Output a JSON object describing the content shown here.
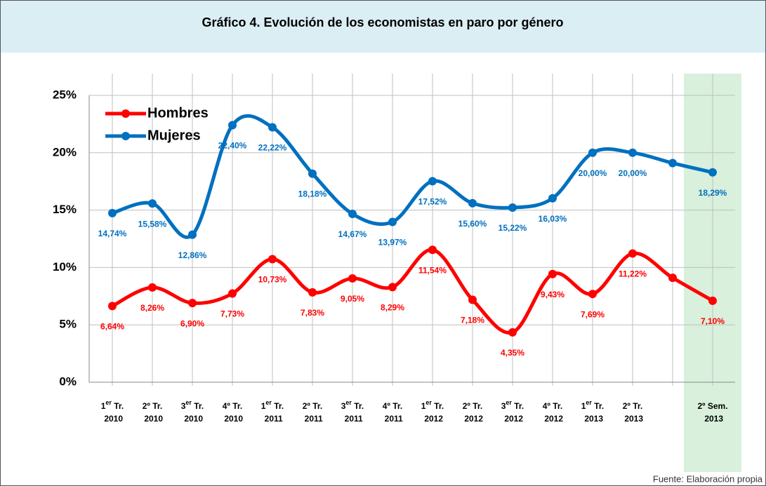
{
  "chart_data": {
    "type": "line",
    "title": "Gráfico 4. Evolución de los economistas en paro por género",
    "source": "Fuente: Elaboración propia",
    "categories": [
      "1er Tr. 2010",
      "2º Tr. 2010",
      "3er Tr. 2010",
      "4º Tr. 2010",
      "1er Tr. 2011",
      "2º Tr. 2011",
      "3er Tr. 2011",
      "4º Tr. 2011",
      "1er Tr. 2012",
      "2º Tr. 2012",
      "3er Tr. 2012",
      "4º Tr. 2012",
      "1er Tr. 2013",
      "2º Tr. 2013",
      null,
      "2º Sem. 2013"
    ],
    "series": [
      {
        "name": "Hombres",
        "color": "#ff0000",
        "values": [
          6.64,
          8.26,
          6.9,
          7.73,
          10.73,
          7.83,
          9.05,
          8.29,
          11.54,
          7.18,
          4.35,
          9.43,
          7.69,
          11.22,
          9.1,
          7.1
        ],
        "value_labels": [
          "6,64%",
          "8,26%",
          "6,90%",
          "7,73%",
          "10,73%",
          "7,83%",
          "9,05%",
          "8,29%",
          "11,54%",
          "7,18%",
          "4,35%",
          "9,43%",
          "7,69%",
          "11,22%",
          null,
          "7,10%"
        ]
      },
      {
        "name": "Mujeres",
        "color": "#0070c0",
        "values": [
          14.74,
          15.58,
          12.86,
          22.4,
          22.22,
          18.18,
          14.67,
          13.97,
          17.52,
          15.6,
          15.22,
          16.03,
          20.0,
          20.0,
          19.1,
          18.29
        ],
        "value_labels": [
          "14,74%",
          "15,58%",
          "12,86%",
          "22,40%",
          "22,22%",
          "18,18%",
          "14,67%",
          "13,97%",
          "17,52%",
          "15,60%",
          "15,22%",
          "16,03%",
          "20,00%",
          "20,00%",
          null,
          "18,29%"
        ]
      }
    ],
    "ylim": [
      0,
      25
    ],
    "yticks": [
      {
        "value": 0,
        "label": "0%"
      },
      {
        "value": 5,
        "label": "5%"
      },
      {
        "value": 10,
        "label": "10%"
      },
      {
        "value": 15,
        "label": "15%"
      },
      {
        "value": 20,
        "label": "20%"
      },
      {
        "value": 25,
        "label": "25%"
      }
    ],
    "grid": true,
    "legend": "upper left",
    "highlight_last": true
  }
}
